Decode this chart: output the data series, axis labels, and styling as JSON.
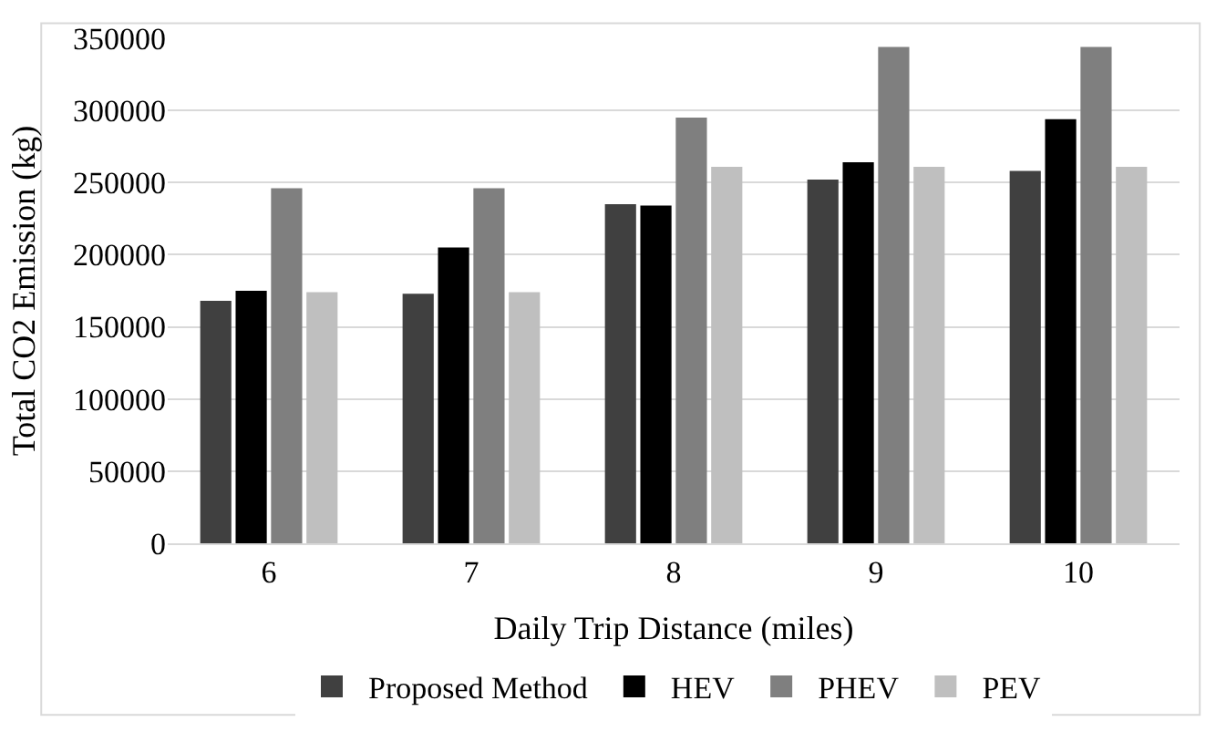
{
  "chart_data": {
    "type": "bar",
    "xlabel": "Daily Trip Distance (miles)",
    "ylabel": "Total CO2 Emission (kg)",
    "categories": [
      "6",
      "7",
      "8",
      "9",
      "10"
    ],
    "series": [
      {
        "name": "Proposed Method",
        "color": "#404040",
        "values": [
          168000,
          173000,
          235000,
          252000,
          258000
        ]
      },
      {
        "name": "HEV",
        "color": "#000000",
        "values": [
          175000,
          205000,
          234000,
          264000,
          294000
        ]
      },
      {
        "name": "PHEV",
        "color": "#7f7f7f",
        "values": [
          246000,
          246000,
          295000,
          344000,
          344000
        ]
      },
      {
        "name": "PEV",
        "color": "#bfbfbf",
        "values": [
          174000,
          174000,
          261000,
          261000,
          261000
        ]
      }
    ],
    "ylim": [
      0,
      350000
    ],
    "yticks": [
      0,
      50000,
      100000,
      150000,
      200000,
      250000,
      300000,
      350000
    ],
    "grid": "y",
    "legend": "bottom"
  }
}
